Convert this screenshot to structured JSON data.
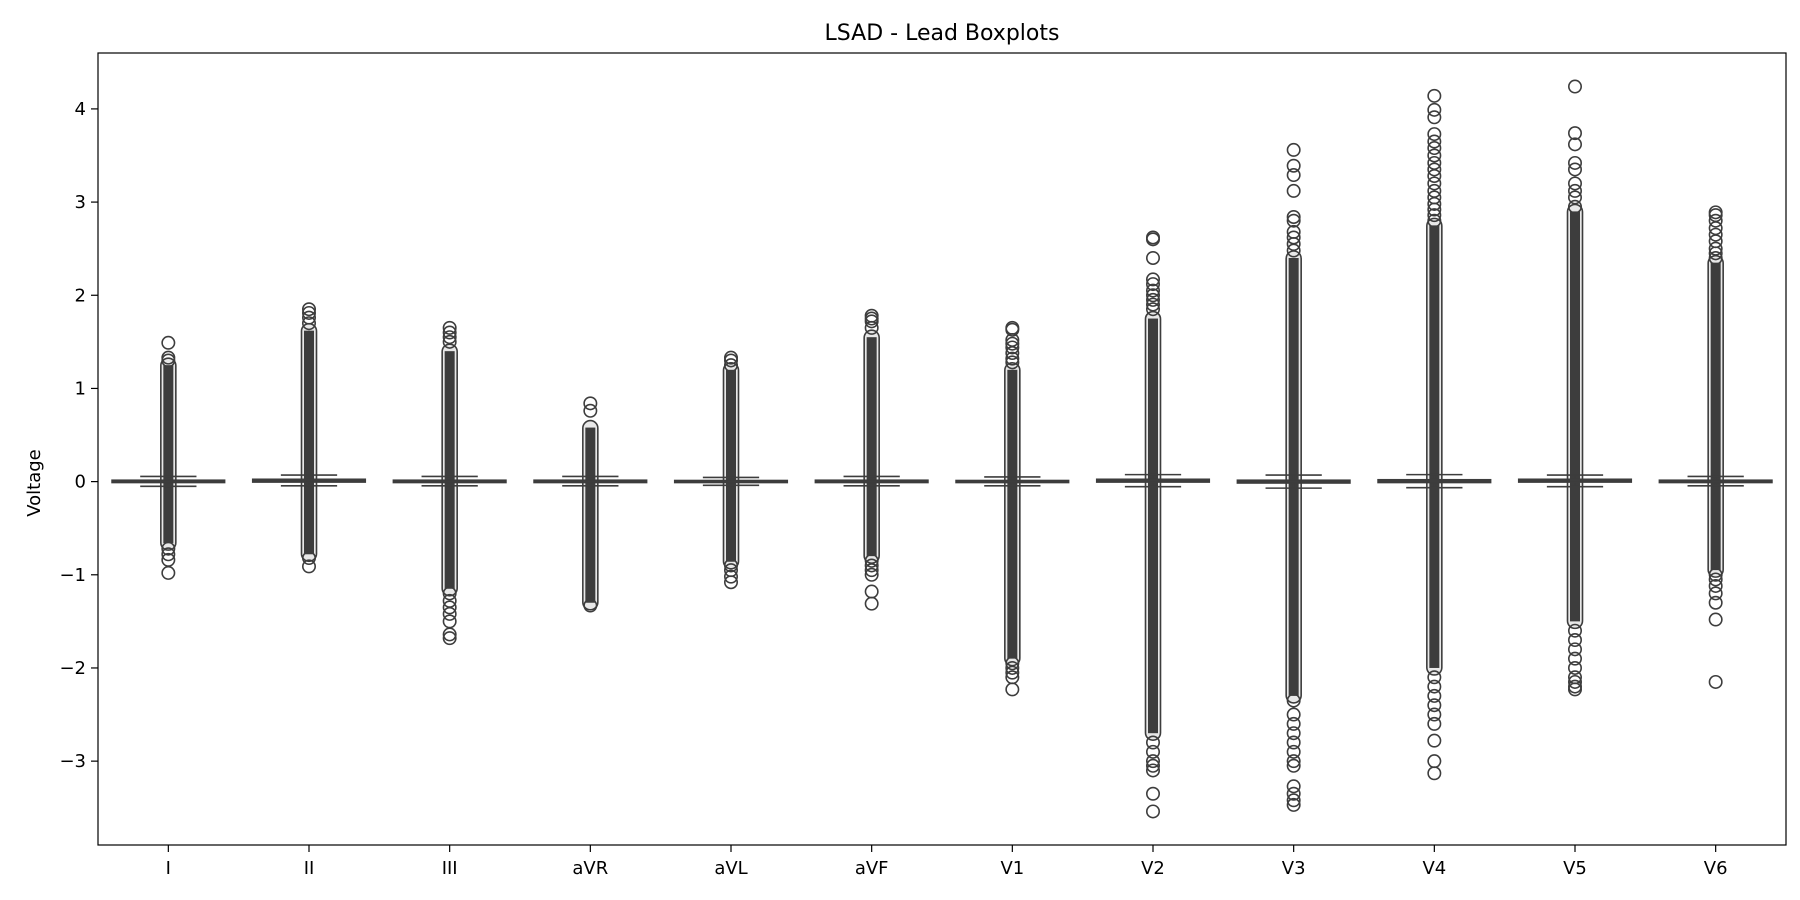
{
  "chart_data": {
    "type": "box",
    "title": "LSAD - Lead Boxplots",
    "xlabel": "",
    "ylabel": "Voltage",
    "ylim": [
      -3.9,
      4.6
    ],
    "yticks": [
      {
        "value": 4,
        "label": "4"
      },
      {
        "value": 3,
        "label": "3"
      },
      {
        "value": 2,
        "label": "2"
      },
      {
        "value": 1,
        "label": "1"
      },
      {
        "value": 0,
        "label": "0"
      },
      {
        "value": -1,
        "label": "−1"
      },
      {
        "value": -2,
        "label": "−2"
      },
      {
        "value": -3,
        "label": "−3"
      }
    ],
    "grid": false,
    "box_color": "#3d3d3d",
    "categories": [
      "I",
      "II",
      "III",
      "aVR",
      "aVL",
      "aVF",
      "V1",
      "V2",
      "V3",
      "V4",
      "V5",
      "V6"
    ],
    "boxes": [
      {
        "q1": -0.01,
        "median": 0.0,
        "q3": 0.015,
        "whisker_low": -0.05,
        "whisker_high": 0.055,
        "outlier_band": [
          -0.66,
          1.25
        ],
        "outliers": [
          1.49,
          1.33,
          1.3,
          -0.72,
          -0.78,
          -0.84,
          -0.98
        ]
      },
      {
        "q1": -0.005,
        "median": 0.01,
        "q3": 0.025,
        "whisker_low": -0.045,
        "whisker_high": 0.07,
        "outlier_band": [
          -0.78,
          1.62
        ],
        "outliers": [
          1.85,
          1.81,
          1.76,
          1.7,
          -0.82,
          -0.91
        ]
      },
      {
        "q1": -0.01,
        "median": 0.0,
        "q3": 0.015,
        "whisker_low": -0.045,
        "whisker_high": 0.055,
        "outlier_band": [
          -1.15,
          1.4
        ],
        "outliers": [
          1.65,
          1.6,
          1.55,
          1.5,
          -1.2,
          -1.28,
          -1.35,
          -1.42,
          -1.5,
          -1.64,
          -1.68
        ]
      },
      {
        "q1": -0.01,
        "median": 0.0,
        "q3": 0.015,
        "whisker_low": -0.045,
        "whisker_high": 0.055,
        "outlier_band": [
          -1.3,
          0.58
        ],
        "outliers": [
          0.84,
          0.76,
          -1.33
        ]
      },
      {
        "q1": -0.01,
        "median": 0.0,
        "q3": 0.012,
        "whisker_low": -0.04,
        "whisker_high": 0.045,
        "outlier_band": [
          -0.86,
          1.2
        ],
        "outliers": [
          1.33,
          1.3,
          1.25,
          -0.9,
          -0.95,
          -1.02,
          -1.08
        ]
      },
      {
        "q1": -0.01,
        "median": 0.0,
        "q3": 0.015,
        "whisker_low": -0.045,
        "whisker_high": 0.055,
        "outlier_band": [
          -0.8,
          1.55
        ],
        "outliers": [
          1.78,
          1.75,
          1.72,
          1.65,
          -0.85,
          -0.9,
          -0.95,
          -1.0,
          -1.18,
          -1.31
        ]
      },
      {
        "q1": -0.01,
        "median": 0.0,
        "q3": 0.012,
        "whisker_low": -0.045,
        "whisker_high": 0.05,
        "outlier_band": [
          -1.9,
          1.2
        ],
        "outliers": [
          1.65,
          1.63,
          1.52,
          1.48,
          1.44,
          1.38,
          1.32,
          1.28,
          -1.95,
          -2.0,
          -2.05,
          -2.1,
          -2.23
        ]
      },
      {
        "q1": -0.005,
        "median": 0.01,
        "q3": 0.025,
        "whisker_low": -0.055,
        "whisker_high": 0.075,
        "outlier_band": [
          -2.7,
          1.75
        ],
        "outliers": [
          2.62,
          2.6,
          2.4,
          2.17,
          2.12,
          2.05,
          2.0,
          1.95,
          1.9,
          1.85,
          -2.8,
          -2.9,
          -3.0,
          -3.05,
          -3.1,
          -3.35,
          -3.54
        ]
      },
      {
        "q1": -0.015,
        "median": 0.0,
        "q3": 0.015,
        "whisker_low": -0.07,
        "whisker_high": 0.07,
        "outlier_band": [
          -2.3,
          2.4
        ],
        "outliers": [
          3.56,
          3.39,
          3.29,
          3.12,
          2.84,
          2.8,
          2.68,
          2.62,
          2.55,
          2.48,
          -2.35,
          -2.5,
          -2.6,
          -2.7,
          -2.8,
          -2.9,
          -3.0,
          -3.05,
          -3.27,
          -3.35,
          -3.42,
          -3.47
        ]
      },
      {
        "q1": -0.01,
        "median": 0.005,
        "q3": 0.02,
        "whisker_low": -0.065,
        "whisker_high": 0.075,
        "outlier_band": [
          -2.0,
          2.75
        ],
        "outliers": [
          4.14,
          3.99,
          3.91,
          3.73,
          3.65,
          3.58,
          3.5,
          3.42,
          3.35,
          3.28,
          3.2,
          3.12,
          3.05,
          2.98,
          2.92,
          2.86,
          2.8,
          -2.1,
          -2.2,
          -2.3,
          -2.4,
          -2.5,
          -2.6,
          -2.78,
          -3.0,
          -3.13
        ]
      },
      {
        "q1": -0.005,
        "median": 0.01,
        "q3": 0.025,
        "whisker_low": -0.055,
        "whisker_high": 0.07,
        "outlier_band": [
          -1.5,
          2.9
        ],
        "outliers": [
          4.24,
          3.74,
          3.62,
          3.42,
          3.35,
          3.2,
          3.12,
          3.05,
          2.95,
          -1.6,
          -1.7,
          -1.8,
          -1.9,
          -2.0,
          -2.1,
          -2.15,
          -2.2,
          -2.23
        ]
      },
      {
        "q1": -0.01,
        "median": 0.0,
        "q3": 0.015,
        "whisker_low": -0.045,
        "whisker_high": 0.055,
        "outlier_band": [
          -0.95,
          2.35
        ],
        "outliers": [
          2.89,
          2.86,
          2.8,
          2.72,
          2.65,
          2.58,
          2.5,
          2.45,
          2.4,
          -1.0,
          -1.05,
          -1.12,
          -1.2,
          -1.3,
          -1.48,
          -2.15
        ]
      }
    ]
  }
}
